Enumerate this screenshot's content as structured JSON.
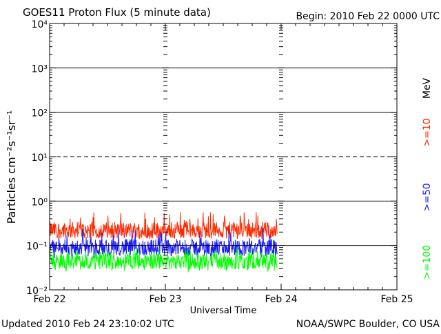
{
  "chart_data": {
    "type": "line",
    "title": "GOES11 Proton Flux (5 minute data)",
    "begin_label": "Begin: 2010 Feb 22 0000 UTC",
    "xlabel": "Universal Time",
    "ylabel": "Particles cm⁻²s⁻¹sr⁻¹",
    "y_scale": "log",
    "ylim": [
      0.01,
      10000
    ],
    "y_ticks": [
      {
        "value": 0.01,
        "label": "10⁻²"
      },
      {
        "value": 0.1,
        "label": "10⁻¹"
      },
      {
        "value": 1,
        "label": "10⁰"
      },
      {
        "value": 10,
        "label": "10¹"
      },
      {
        "value": 100,
        "label": "10²"
      },
      {
        "value": 1000,
        "label": "10³"
      },
      {
        "value": 10000,
        "label": "10⁴"
      }
    ],
    "reference_lines": [
      {
        "value": 1000,
        "style": "solid"
      },
      {
        "value": 100,
        "style": "solid"
      },
      {
        "value": 10,
        "style": "dashed"
      },
      {
        "value": 1,
        "style": "solid"
      },
      {
        "value": 0.1,
        "style": "solid"
      }
    ],
    "x_range_days": [
      0,
      3
    ],
    "x_ticks": [
      {
        "value": 0,
        "label": "Feb 22"
      },
      {
        "value": 1,
        "label": "Feb 23"
      },
      {
        "value": 2,
        "label": "Feb 24"
      },
      {
        "value": 3,
        "label": "Feb 25"
      }
    ],
    "data_end_day": 1.965,
    "energy_unit": "MeV",
    "grid": false,
    "series": [
      {
        "name": ">=10",
        "color": "#ff2a00",
        "typical_value": 0.22,
        "min": 0.14,
        "max": 0.6
      },
      {
        "name": ">=50",
        "color": "#1a1aff",
        "typical_value": 0.09,
        "min": 0.05,
        "max": 0.25
      },
      {
        "name": ">=100",
        "color": "#00ff00",
        "typical_value": 0.045,
        "min": 0.025,
        "max": 0.09
      }
    ]
  },
  "footer": {
    "updated": "Updated 2010 Feb 24 23:10:02 UTC",
    "source": "NOAA/SWPC Boulder, CO USA"
  }
}
